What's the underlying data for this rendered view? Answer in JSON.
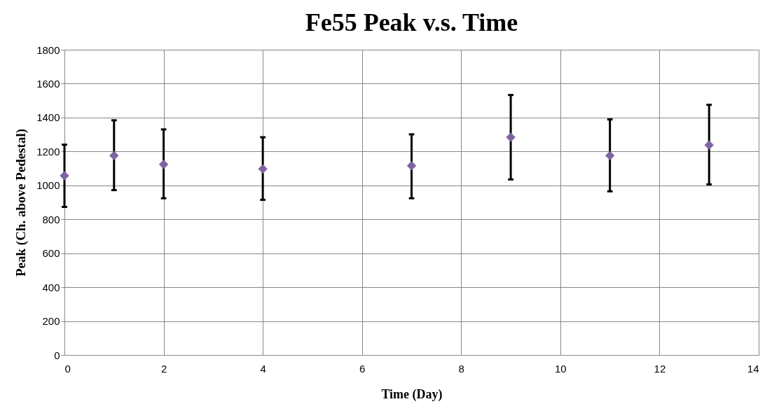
{
  "chart_data": {
    "type": "scatter",
    "title": "Fe55 Peak v.s. Time",
    "xlabel": "Time (Day)",
    "ylabel": "Peak (Ch. above Pedestal)",
    "x": [
      0,
      1,
      2,
      4,
      7,
      9,
      11,
      13
    ],
    "series": [
      {
        "color": "#8064a2",
        "values": [
          1057,
          1176,
          1124,
          1097,
          1116,
          1284,
          1176,
          1238
        ],
        "errors": [
          [
            873,
            1240
          ],
          [
            972,
            1384
          ],
          [
            924,
            1330
          ],
          [
            915,
            1284
          ],
          [
            924,
            1301
          ],
          [
            1035,
            1533
          ],
          [
            965,
            1389
          ],
          [
            1006,
            1475
          ]
        ]
      }
    ],
    "marker": "diamond",
    "xlim": [
      0,
      14
    ],
    "xticks": [
      0,
      2,
      4,
      6,
      8,
      10,
      12,
      14
    ],
    "ylim": [
      0,
      1800
    ],
    "yticks": [
      0,
      200,
      400,
      600,
      800,
      1000,
      1200,
      1400,
      1600,
      1800
    ],
    "grid": true,
    "legend": false
  }
}
